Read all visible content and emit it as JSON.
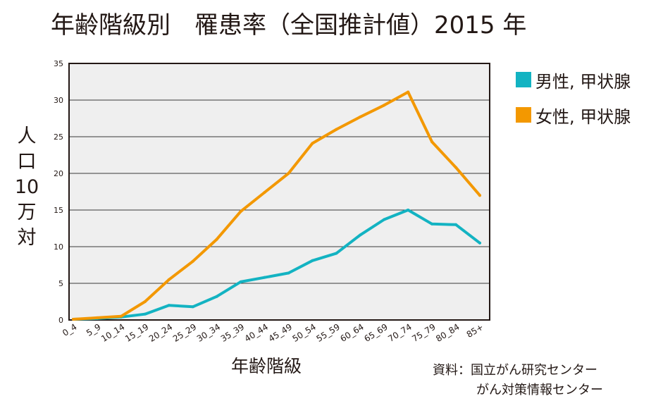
{
  "chart_data": {
    "type": "line",
    "title": "年齢階級別　罹患率（全国推計値）2015 年",
    "xlabel": "年齢階級",
    "ylabel": "人口10万対",
    "ylim": [
      0,
      35
    ],
    "yticks": [
      0,
      5,
      10,
      15,
      20,
      25,
      30,
      35
    ],
    "grid": true,
    "legend_position": "right",
    "categories": [
      "0_4",
      "5_9",
      "10_14",
      "15_19",
      "20_24",
      "25_29",
      "30_34",
      "35_39",
      "40_44",
      "45_49",
      "50_54",
      "55_59",
      "60_64",
      "65_69",
      "70_74",
      "75_79",
      "80_84",
      "85+"
    ],
    "series": [
      {
        "name": "男性, 甲状腺",
        "color": "#13b3c2",
        "values": [
          0.1,
          0.2,
          0.4,
          0.8,
          2.0,
          1.8,
          3.2,
          5.2,
          5.8,
          6.4,
          8.1,
          9.1,
          11.6,
          13.7,
          15.0,
          13.1,
          13.0,
          10.5
        ]
      },
      {
        "name": "女性, 甲状腺",
        "color": "#f39800",
        "values": [
          0.1,
          0.3,
          0.5,
          2.5,
          5.5,
          8.0,
          11.0,
          14.8,
          17.4,
          20.0,
          24.1,
          26.0,
          27.7,
          29.3,
          31.1,
          24.3,
          20.8,
          17.0
        ]
      }
    ],
    "plot_background": "#efefef"
  },
  "source": {
    "line1": "資料：国立がん研究センター",
    "line2": "がん対策情報センター"
  }
}
